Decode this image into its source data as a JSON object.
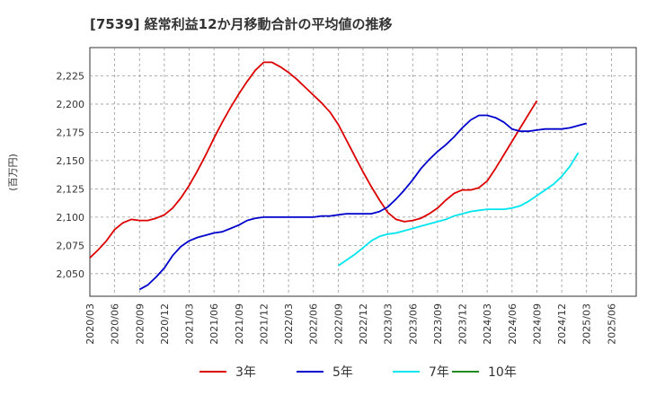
{
  "chart_data": {
    "type": "line",
    "title": "[7539]  経常利益12か月移動合計の平均値の推移",
    "ylabel": "(百万円)",
    "xlabel": "",
    "ylim": [
      2030,
      2250
    ],
    "yticks": [
      2050,
      2075,
      2100,
      2125,
      2150,
      2175,
      2200,
      2225
    ],
    "ytick_labels": [
      "2,050",
      "2,075",
      "2,100",
      "2,125",
      "2,150",
      "2,175",
      "2,200",
      "2,225"
    ],
    "xticks": [
      "2020/03",
      "2020/06",
      "2020/09",
      "2020/12",
      "2021/03",
      "2021/06",
      "2021/09",
      "2021/12",
      "2022/03",
      "2022/06",
      "2022/09",
      "2022/12",
      "2023/03",
      "2023/06",
      "2023/09",
      "2023/12",
      "2024/03",
      "2024/06",
      "2024/09",
      "2024/12",
      "2025/03",
      "2025/06"
    ],
    "grid": true,
    "legend_position": "bottom",
    "x_start_month": "2020/03",
    "series": [
      {
        "name": "3年",
        "color": "#dd0000",
        "start_index": 0,
        "values": [
          2064,
          2071,
          2079,
          2089,
          2095,
          2098,
          2097,
          2097,
          2099,
          2102,
          2108,
          2117,
          2128,
          2141,
          2155,
          2170,
          2184,
          2197,
          2209,
          2220,
          2230,
          2237,
          2237,
          2233,
          2228,
          2222,
          2215,
          2208,
          2201,
          2193,
          2182,
          2168,
          2154,
          2140,
          2127,
          2115,
          2104,
          2098,
          2096,
          2097,
          2099,
          2103,
          2108,
          2115,
          2121,
          2124,
          2124,
          2126,
          2132,
          2143,
          2155,
          2167,
          2179,
          2191,
          2203
        ]
      },
      {
        "name": "5年",
        "color": "#0000cc",
        "start_index": 6,
        "values": [
          2036,
          2040,
          2047,
          2055,
          2066,
          2074,
          2079,
          2082,
          2084,
          2086,
          2087,
          2090,
          2093,
          2097,
          2099,
          2100,
          2100,
          2100,
          2100,
          2100,
          2100,
          2100,
          2101,
          2101,
          2102,
          2103,
          2103,
          2103,
          2103,
          2105,
          2109,
          2116,
          2124,
          2133,
          2143,
          2151,
          2158,
          2164,
          2171,
          2179,
          2186,
          2190,
          2190,
          2188,
          2184,
          2178,
          2176,
          2176,
          2177,
          2178,
          2178,
          2178,
          2179,
          2181,
          2183
        ]
      },
      {
        "name": "7年",
        "color": "#00e5ee",
        "start_index": 30,
        "values": [
          2057,
          2062,
          2067,
          2073,
          2079,
          2083,
          2085,
          2086,
          2088,
          2090,
          2092,
          2094,
          2096,
          2098,
          2101,
          2103,
          2105,
          2106,
          2107,
          2107,
          2107,
          2108,
          2110,
          2114,
          2119,
          2124,
          2129,
          2136,
          2145,
          2157
        ]
      },
      {
        "name": "10年",
        "color": "#228b22",
        "start_index": 0,
        "values": []
      }
    ]
  }
}
